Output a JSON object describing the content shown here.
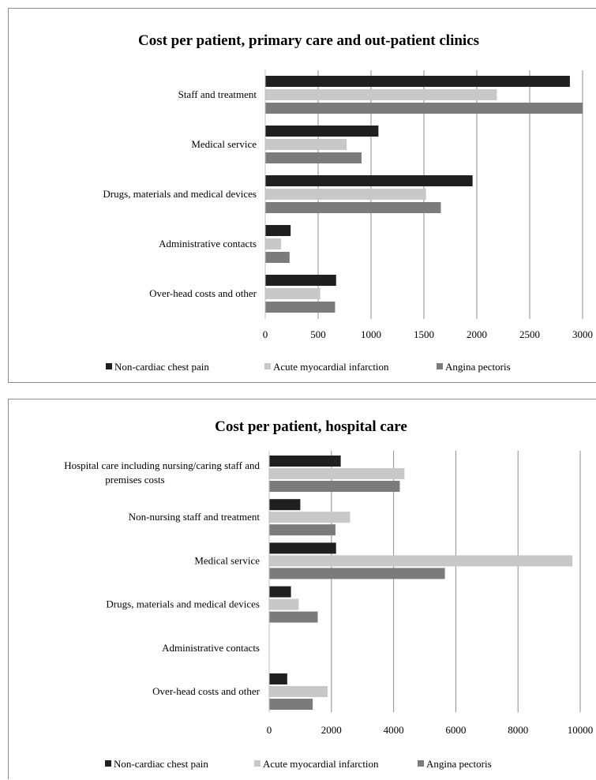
{
  "colors": {
    "series": [
      "#1f1f1f",
      "#c8c8c8",
      "#7b7b7b"
    ],
    "grid": "#8c8c8c"
  },
  "chart_data": [
    {
      "type": "bar",
      "orientation": "horizontal",
      "title": "Cost per patient, primary care and out-patient clinics",
      "categories": [
        "Staff and treatment",
        "Medical service",
        "Drugs, materials and medical devices",
        "Administrative contacts",
        "Over-head costs and other"
      ],
      "series": [
        {
          "name": "Non-cardiac chest pain",
          "values": [
            2880,
            1070,
            1960,
            240,
            670
          ]
        },
        {
          "name": "Acute myocardial infarction",
          "values": [
            2190,
            770,
            1520,
            150,
            520
          ]
        },
        {
          "name": "Angina pectoris",
          "values": [
            3000,
            910,
            1660,
            230,
            660
          ]
        }
      ],
      "xticks": [
        "0",
        "500",
        "1000",
        "1500",
        "2000",
        "2500",
        "3000"
      ],
      "xlim": [
        0,
        3000
      ],
      "grid": true,
      "legend_position": "bottom"
    },
    {
      "type": "bar",
      "orientation": "horizontal",
      "title": "Cost per patient, hospital care",
      "categories": [
        "Hospital care including nursing/caring staff and premises costs",
        "Non-nursing staff and treatment",
        "Medical service",
        "Drugs, materials and medical devices",
        "Administrative contacts",
        "Over-head costs and other"
      ],
      "series": [
        {
          "name": "Non-cardiac chest pain",
          "values": [
            2300,
            1000,
            2150,
            700,
            0,
            580
          ]
        },
        {
          "name": "Acute myocardial infarction",
          "values": [
            4350,
            2600,
            9750,
            950,
            0,
            1880
          ]
        },
        {
          "name": "Angina pectoris",
          "values": [
            4200,
            2130,
            5650,
            1560,
            0,
            1400
          ]
        }
      ],
      "xticks": [
        "0",
        "2000",
        "4000",
        "6000",
        "8000",
        "10000"
      ],
      "xlim": [
        0,
        10000
      ],
      "grid": true,
      "legend_position": "bottom"
    }
  ]
}
